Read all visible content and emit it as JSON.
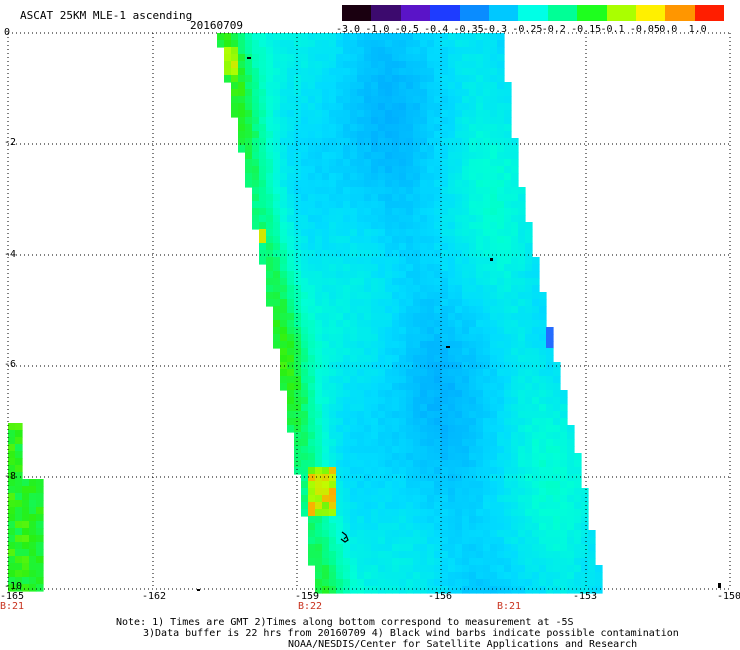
{
  "header": {
    "title": "ASCAT 25KM MLE-1 ascending",
    "date": "20160709"
  },
  "colorbar": {
    "labels": [
      "-3.0",
      "-1.0",
      "-0.5",
      "-0.4",
      "-0.35",
      "-0.3",
      "-0.25",
      "-0.2",
      "-0.15",
      "-0.1",
      "-0.05",
      "0.0",
      "1.0"
    ],
    "colors": [
      "#1a0010",
      "#3c0a6e",
      "#5a14c8",
      "#1e3cff",
      "#0a8cff",
      "#00c8ff",
      "#00ffe6",
      "#00ff96",
      "#1eff1e",
      "#aaff00",
      "#fff000",
      "#ff9600",
      "#ff1e00"
    ]
  },
  "map": {
    "lon_ticks": [
      "-165",
      "-162",
      "-159",
      "-156",
      "-153",
      "-150"
    ],
    "lat_ticks": [
      "0",
      "-2",
      "-4",
      "-6",
      "-8",
      "-10"
    ],
    "time_labels": [
      "B:21",
      "B:22",
      "B:21"
    ]
  },
  "notes": {
    "line1": "Note: 1) Times are GMT 2)Times along bottom correspond to measurement at -5S",
    "line2": "3)Data buffer is 22 hrs from 20160709 4) Black wind barbs indicate possible contamination",
    "line3": "NOAA/NESDIS/Center for Satellite Applications and Research"
  }
}
